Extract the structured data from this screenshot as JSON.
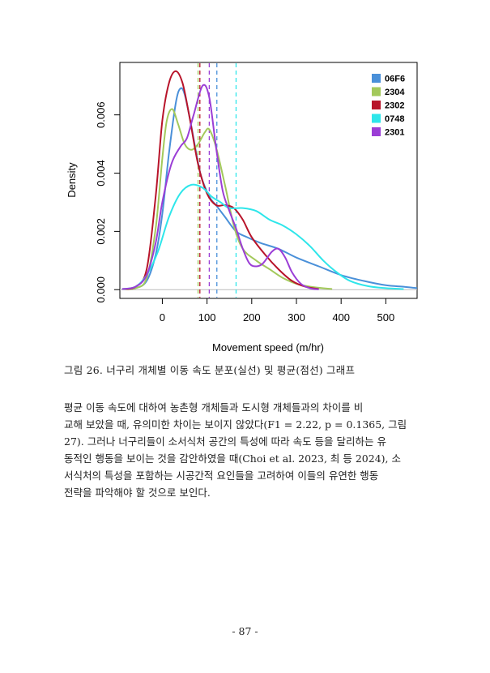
{
  "chart_data": {
    "type": "line",
    "title": "",
    "xlabel": "Movement speed (m/hr)",
    "ylabel": "Density",
    "xlim": [
      -95,
      570
    ],
    "ylim": [
      -0.0003,
      0.0078
    ],
    "x_ticks": [
      0,
      100,
      200,
      300,
      400,
      500
    ],
    "x_tick_labels": [
      "0",
      "100",
      "200",
      "300",
      "400",
      "500"
    ],
    "y_ticks": [
      0.0,
      0.002,
      0.004,
      0.006
    ],
    "y_tick_labels": [
      "0.000",
      "0.002",
      "0.004",
      "0.006"
    ],
    "legend_position": "top-right",
    "series": [
      {
        "name": "06F6",
        "color": "#4a90d9",
        "mean": 122,
        "points": [
          [
            -90,
            2e-05
          ],
          [
            -60,
            5e-05
          ],
          [
            -35,
            0.0003
          ],
          [
            -15,
            0.0012
          ],
          [
            0,
            0.0026
          ],
          [
            15,
            0.0047
          ],
          [
            30,
            0.0064
          ],
          [
            40,
            0.0069
          ],
          [
            50,
            0.0067
          ],
          [
            65,
            0.0056
          ],
          [
            85,
            0.004
          ],
          [
            105,
            0.0032
          ],
          [
            120,
            0.0029
          ],
          [
            140,
            0.0025
          ],
          [
            165,
            0.002
          ],
          [
            190,
            0.0018
          ],
          [
            220,
            0.0016
          ],
          [
            260,
            0.0014
          ],
          [
            300,
            0.0011
          ],
          [
            350,
            0.0008
          ],
          [
            400,
            0.0005
          ],
          [
            450,
            0.0003
          ],
          [
            500,
            0.00015
          ],
          [
            540,
            0.0001
          ],
          [
            570,
            5e-05
          ]
        ]
      },
      {
        "name": "2304",
        "color": "#a3c95b",
        "mean": 80,
        "points": [
          [
            -90,
            2e-05
          ],
          [
            -60,
            5e-05
          ],
          [
            -35,
            0.0004
          ],
          [
            -15,
            0.0021
          ],
          [
            0,
            0.0045
          ],
          [
            10,
            0.0058
          ],
          [
            22,
            0.0062
          ],
          [
            35,
            0.0057
          ],
          [
            50,
            0.005
          ],
          [
            65,
            0.0048
          ],
          [
            80,
            0.005
          ],
          [
            95,
            0.0054
          ],
          [
            105,
            0.0055
          ],
          [
            120,
            0.0049
          ],
          [
            140,
            0.0036
          ],
          [
            160,
            0.0022
          ],
          [
            180,
            0.0014
          ],
          [
            210,
            0.001
          ],
          [
            240,
            0.0007
          ],
          [
            270,
            0.0004
          ],
          [
            300,
            0.0002
          ],
          [
            340,
            8e-05
          ],
          [
            380,
            2e-05
          ]
        ]
      },
      {
        "name": "2302",
        "color": "#b8142a",
        "mean": 84,
        "points": [
          [
            -90,
            2e-05
          ],
          [
            -60,
            0.0001
          ],
          [
            -35,
            0.0007
          ],
          [
            -15,
            0.0032
          ],
          [
            0,
            0.0058
          ],
          [
            15,
            0.0071
          ],
          [
            30,
            0.0075
          ],
          [
            45,
            0.0071
          ],
          [
            60,
            0.006
          ],
          [
            80,
            0.0043
          ],
          [
            100,
            0.0033
          ],
          [
            120,
            0.0029
          ],
          [
            140,
            0.0029
          ],
          [
            160,
            0.0028
          ],
          [
            180,
            0.0024
          ],
          [
            200,
            0.0018
          ],
          [
            230,
            0.0012
          ],
          [
            260,
            0.0007
          ],
          [
            290,
            0.0003
          ],
          [
            320,
            0.0001
          ],
          [
            350,
            2e-05
          ]
        ]
      },
      {
        "name": "0748",
        "color": "#2ee6ea",
        "mean": 165,
        "points": [
          [
            -90,
            2e-05
          ],
          [
            -60,
            0.0001
          ],
          [
            -35,
            0.0005
          ],
          [
            -10,
            0.0013
          ],
          [
            15,
            0.0025
          ],
          [
            40,
            0.0033
          ],
          [
            65,
            0.0036
          ],
          [
            90,
            0.0035
          ],
          [
            110,
            0.0032
          ],
          [
            130,
            0.003
          ],
          [
            150,
            0.0028
          ],
          [
            180,
            0.0028
          ],
          [
            210,
            0.0027
          ],
          [
            240,
            0.0024
          ],
          [
            270,
            0.0022
          ],
          [
            300,
            0.0019
          ],
          [
            330,
            0.0015
          ],
          [
            360,
            0.001
          ],
          [
            390,
            0.0006
          ],
          [
            420,
            0.0003
          ],
          [
            460,
            0.00012
          ],
          [
            500,
            5e-05
          ],
          [
            540,
            2e-05
          ]
        ]
      },
      {
        "name": "2301",
        "color": "#9b3ed6",
        "mean": 105,
        "points": [
          [
            -90,
            2e-05
          ],
          [
            -60,
            0.0001
          ],
          [
            -35,
            0.0005
          ],
          [
            -15,
            0.0016
          ],
          [
            0,
            0.003
          ],
          [
            20,
            0.0043
          ],
          [
            40,
            0.0049
          ],
          [
            55,
            0.0052
          ],
          [
            70,
            0.006
          ],
          [
            90,
            0.007
          ],
          [
            105,
            0.0066
          ],
          [
            120,
            0.0049
          ],
          [
            135,
            0.0034
          ],
          [
            150,
            0.0027
          ],
          [
            165,
            0.0021
          ],
          [
            180,
            0.0014
          ],
          [
            195,
            0.0009
          ],
          [
            210,
            0.0008
          ],
          [
            225,
            0.0009
          ],
          [
            245,
            0.0013
          ],
          [
            260,
            0.0014
          ],
          [
            275,
            0.0011
          ],
          [
            290,
            0.0006
          ],
          [
            310,
            0.0002
          ],
          [
            330,
            5e-05
          ],
          [
            350,
            1e-05
          ]
        ]
      }
    ]
  },
  "caption": "그림 26. 너구리 개체별 이동 속도 분포(실선) 및 평균(점선) 그래프",
  "paragraph_lines": [
    "    평균 이동 속도에 대하여 농촌형 개체들과 도시형 개체들과의 차이를 비",
    "교해 보았을 때, 유의미한 차이는 보이지 않았다(F1 = 2.22, p = 0.1365, 그림",
    "27). 그러나 너구리들이 소서식처 공간의 특성에 따라 속도 등을 달리하는 유",
    "동적인 행동을 보이는 것을 감안하였을 때(Choi et al. 2023, 최 등 2024), 소",
    "서식처의 특성을 포함하는 시공간적 요인들을 고려하여 이들의 유연한 행동",
    "전략을 파악해야 할 것으로 보인다."
  ],
  "page_number": "- 87 -"
}
